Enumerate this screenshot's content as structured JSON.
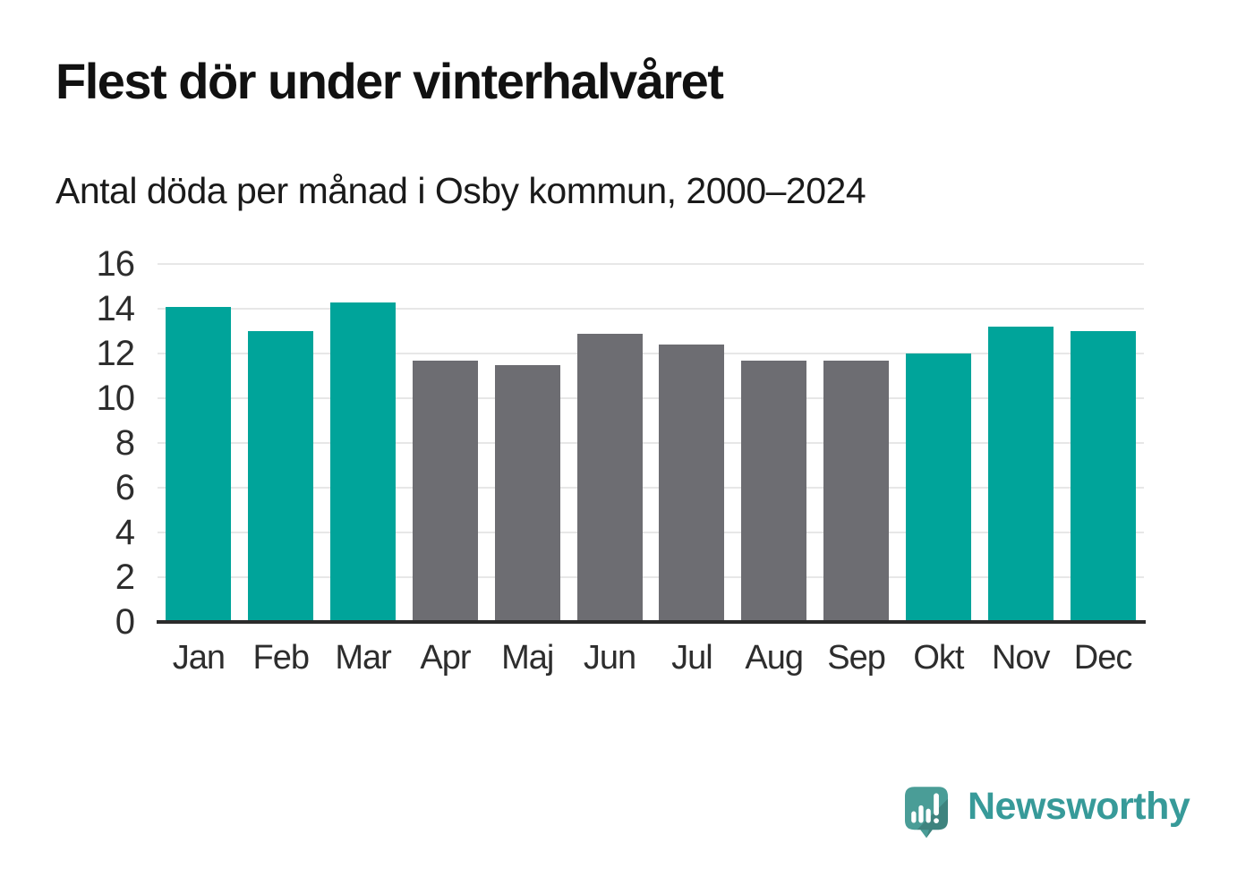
{
  "header": {
    "title": "Flest dör under vinterhalvåret",
    "subtitle": "Antal döda per månad i Osby kommun, 2000–2024"
  },
  "chart_data": {
    "type": "bar",
    "title": "Flest dör under vinterhalvåret",
    "subtitle": "Antal döda per månad i Osby kommun, 2000–2024",
    "categories": [
      "Jan",
      "Feb",
      "Mar",
      "Apr",
      "Maj",
      "Jun",
      "Jul",
      "Aug",
      "Sep",
      "Okt",
      "Nov",
      "Dec"
    ],
    "values": [
      14.1,
      13.0,
      14.3,
      11.7,
      11.5,
      12.9,
      12.4,
      11.7,
      11.7,
      12.0,
      13.2,
      13.0
    ],
    "highlighted_categories": [
      "Jan",
      "Feb",
      "Mar",
      "Okt",
      "Nov",
      "Dec"
    ],
    "xlabel": "",
    "ylabel": "",
    "ylim": [
      0,
      16
    ],
    "yticks": [
      16,
      14,
      12,
      10,
      8,
      6,
      4,
      2,
      0
    ],
    "grid": "horizontal",
    "legend": "none",
    "colors": {
      "highlight_bar": "#00a49a",
      "base_bar": "#6d6d72"
    }
  },
  "branding": {
    "logo_text": "Newsworthy",
    "logo_icon": "speech-bubble-bar-chart",
    "colors": {
      "logo_text": "#379a99",
      "logo_bubble": "#4a9d97",
      "logo_bubble_shade": "#42938d",
      "logo_glyphs": "#ffffff"
    }
  },
  "colors": {
    "background": "#ffffff",
    "title_text": "#111111",
    "subtitle_text": "#1a1a1a",
    "tick_text": "#2d2d2d",
    "gridline": "#e7e7e7",
    "axis_line": "#2b2b2b"
  }
}
